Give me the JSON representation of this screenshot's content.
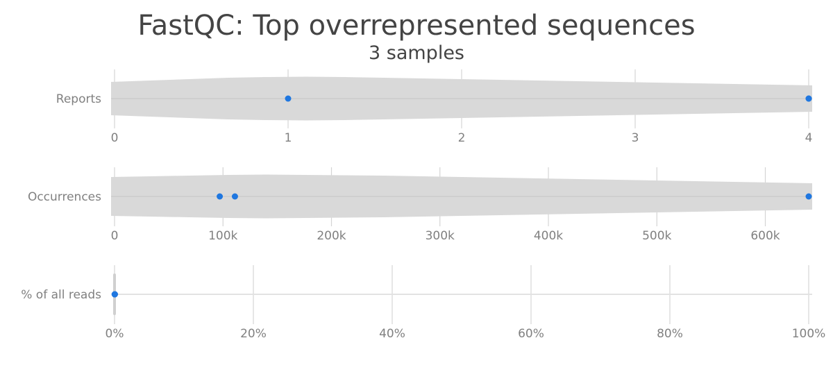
{
  "chart_data": {
    "type": "violin",
    "title": "FastQC: Top overrepresented sequences",
    "subtitle": "3 samples",
    "violin_color": "#d9d9d9",
    "point_color": "#1f77e0",
    "panels": [
      {
        "label": "Reports",
        "xlim": [
          0,
          4
        ],
        "ticks": [
          0,
          1,
          2,
          3,
          4
        ],
        "tick_labels": [
          "0",
          "1",
          "2",
          "3",
          "4"
        ],
        "points": [
          1,
          4,
          4
        ]
      },
      {
        "label": "Occurrences",
        "xlim": [
          0,
          640000
        ],
        "ticks": [
          0,
          100000,
          200000,
          300000,
          400000,
          500000,
          600000
        ],
        "tick_labels": [
          "0",
          "100k",
          "200k",
          "300k",
          "400k",
          "500k",
          "600k"
        ],
        "points": [
          97000,
          111000,
          640000
        ]
      },
      {
        "label": "% of all reads",
        "xlim": [
          0,
          100
        ],
        "ticks": [
          0,
          20,
          40,
          60,
          80,
          100
        ],
        "tick_labels": [
          "0%",
          "20%",
          "40%",
          "60%",
          "80%",
          "100%"
        ],
        "points": [
          0.02,
          0.03,
          0.05
        ]
      }
    ]
  }
}
